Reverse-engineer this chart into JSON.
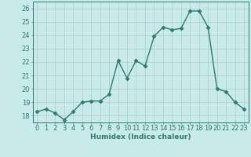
{
  "x": [
    0,
    1,
    2,
    3,
    4,
    5,
    6,
    7,
    8,
    9,
    10,
    11,
    12,
    13,
    14,
    15,
    16,
    17,
    18,
    19,
    20,
    21,
    22,
    23
  ],
  "y": [
    18.3,
    18.5,
    18.2,
    17.7,
    18.3,
    19.0,
    19.1,
    19.1,
    19.6,
    22.1,
    20.8,
    22.1,
    21.7,
    23.9,
    24.6,
    24.4,
    24.5,
    25.8,
    25.8,
    24.6,
    20.0,
    19.8,
    19.0,
    18.5
  ],
  "line_color": "#2d7a6e",
  "marker_color": "#2d7a6e",
  "bg_color": "#c8eae8",
  "grid_color": "#a8ceca",
  "tick_color": "#2d7a6e",
  "xlabel": "Humidex (Indice chaleur)",
  "ylim": [
    17.5,
    26.5
  ],
  "xlim": [
    -0.5,
    23.5
  ],
  "yticks": [
    18,
    19,
    20,
    21,
    22,
    23,
    24,
    25,
    26
  ],
  "xticks": [
    0,
    1,
    2,
    3,
    4,
    5,
    6,
    7,
    8,
    9,
    10,
    11,
    12,
    13,
    14,
    15,
    16,
    17,
    18,
    19,
    20,
    21,
    22,
    23
  ],
  "xlabel_fontsize": 6.5,
  "tick_fontsize": 6.0,
  "marker_size": 2.5,
  "line_width": 1.0
}
